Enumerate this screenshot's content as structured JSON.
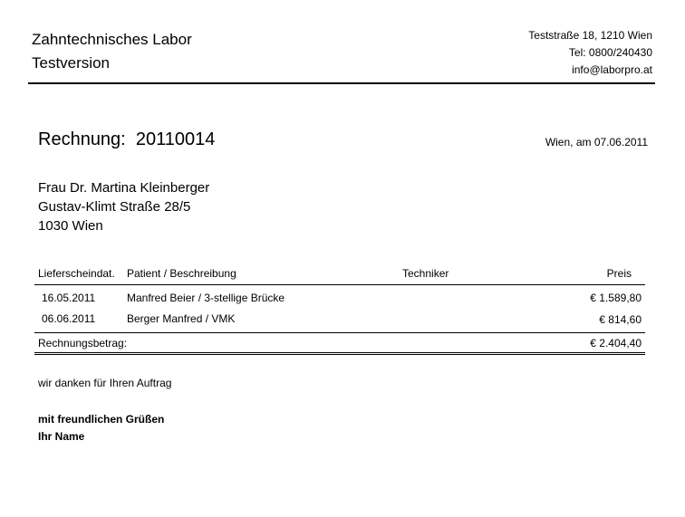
{
  "header": {
    "company": "Zahntechnisches Labor",
    "subtitle": "Testversion",
    "address": "Teststraße 18, 1210 Wien",
    "phone": "Tel: 0800/240430",
    "email": "info@laborpro.at"
  },
  "invoice": {
    "label": "Rechnung:",
    "number": "20110014",
    "date": "Wien, am 07.06.2011"
  },
  "recipient": {
    "name": "Frau Dr. Martina Kleinberger",
    "street": "Gustav-Klimt Straße 28/5",
    "city": "1030 Wien"
  },
  "table": {
    "headers": [
      "Lieferscheindat.",
      "Patient / Beschreibung",
      "Techniker",
      "Preis"
    ],
    "rows": [
      {
        "date": "16.05.2011",
        "desc": "Manfred Beier / 3-stellige Brücke",
        "tech": "",
        "price": "€ 1.589,80"
      },
      {
        "date": "06.06.2011",
        "desc": "Berger Manfred / VMK",
        "tech": "",
        "price": "€ 814,60"
      }
    ],
    "total_label": "Rechnungsbetrag:",
    "total": "€ 2.404,40"
  },
  "footer": {
    "thanks": "wir danken für Ihren Auftrag",
    "greeting": "mit freundlichen Grüßen",
    "signature": "Ihr Name"
  }
}
